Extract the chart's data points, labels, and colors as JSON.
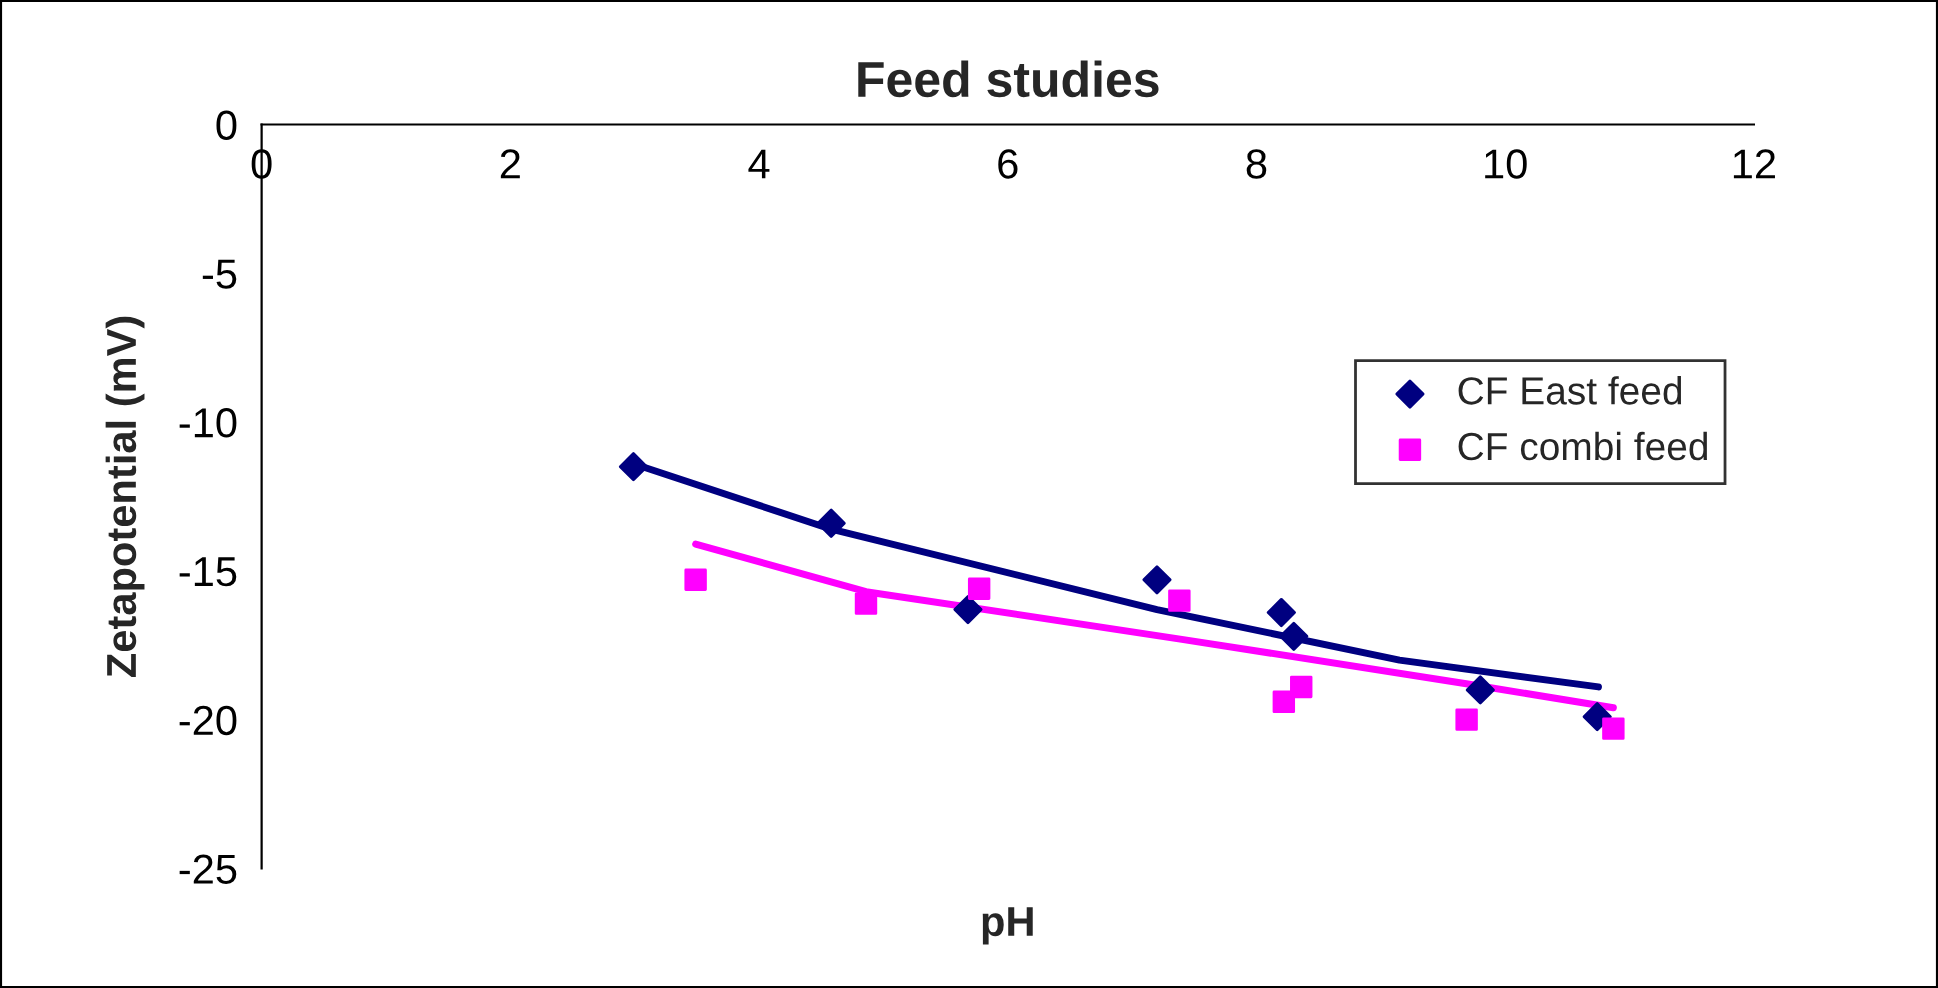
{
  "chart_data": {
    "type": "scatter",
    "title": "Feed studies",
    "xlabel": "pH",
    "ylabel": "Zetapotential (mV)",
    "xlim": [
      0,
      12
    ],
    "xticks": [
      0,
      2,
      4,
      6,
      8,
      10,
      12
    ],
    "ylim": [
      -25,
      0
    ],
    "yticks": [
      -25,
      -20,
      -15,
      -10,
      -5,
      0
    ],
    "grid": false,
    "legend": "right",
    "series": [
      {
        "name": "CF East feed",
        "color": "#000080",
        "marker": "diamond",
        "x": [
          2.99,
          4.58,
          5.68,
          7.2,
          8.2,
          8.3,
          9.8,
          10.74
        ],
        "values": [
          -11.5,
          -13.4,
          -16.3,
          -15.3,
          -16.4,
          -17.2,
          -19.0,
          -19.9
        ]
      },
      {
        "name": "CF combi feed",
        "color": "#ff00ff",
        "marker": "square",
        "x": [
          3.49,
          4.86,
          5.77,
          7.38,
          8.22,
          8.36,
          9.69,
          10.87
        ],
        "values": [
          -15.3,
          -16.1,
          -15.6,
          -16.0,
          -19.4,
          -18.9,
          -20.0,
          -20.3
        ]
      },
      {
        "type": "line",
        "color": "#000080",
        "x": [
          2.99,
          4.58,
          7.2,
          9.15,
          10.75
        ],
        "values": [
          -11.4,
          -13.6,
          -16.3,
          -18.0,
          -18.9
        ]
      },
      {
        "type": "line",
        "color": "#ff00ff",
        "x": [
          3.49,
          4.86,
          7.4,
          9.7,
          10.87
        ],
        "values": [
          -14.1,
          -15.7,
          -17.3,
          -18.8,
          -19.6
        ]
      }
    ]
  }
}
